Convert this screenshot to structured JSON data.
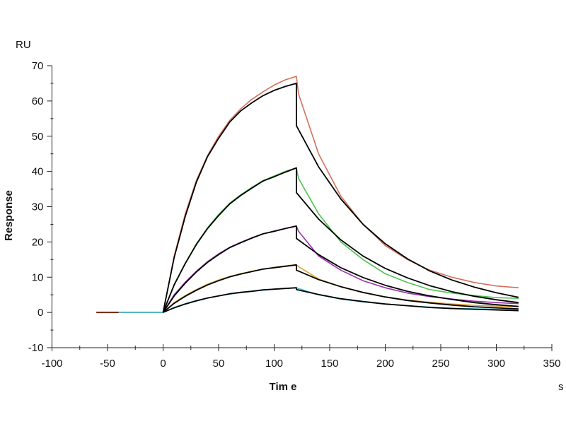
{
  "chart_data": {
    "type": "line",
    "title": "",
    "xlabel": "Tim e",
    "xunit": "s",
    "ylabel": "Response",
    "yunit": "RU",
    "xlim": [
      -100,
      350
    ],
    "ylim": [
      -10,
      70
    ],
    "xticks": [
      -100,
      -50,
      0,
      50,
      100,
      150,
      200,
      250,
      300,
      350
    ],
    "yticks": [
      -10,
      0,
      10,
      20,
      30,
      40,
      50,
      60,
      70
    ],
    "grid": false,
    "legend": "none",
    "assoc_times": [
      0,
      10,
      20,
      30,
      40,
      50,
      60,
      70,
      80,
      90,
      100,
      110,
      120
    ],
    "dissoc_times": [
      120,
      140,
      160,
      180,
      200,
      220,
      240,
      260,
      280,
      300,
      320
    ],
    "baseline_times": [
      -60,
      -40,
      -20,
      0
    ],
    "series": [
      {
        "name": "data-1",
        "color": "#d4705a",
        "kind": "data",
        "assoc": [
          0,
          16,
          28,
          37.5,
          44.5,
          50,
          54.5,
          57.8,
          60.5,
          62.6,
          64.5,
          66,
          67
        ],
        "dissoc": [
          62,
          45,
          33,
          25,
          19,
          15,
          12,
          10,
          8.5,
          7.5,
          7
        ]
      },
      {
        "name": "data-2",
        "color": "#4cc44c",
        "kind": "data",
        "assoc": [
          0,
          8,
          14,
          19.5,
          24,
          27.8,
          31,
          33.4,
          35.5,
          37.4,
          38.7,
          40,
          41
        ],
        "dissoc": [
          38,
          28,
          20,
          15,
          11,
          8.5,
          6.5,
          5.5,
          4.8,
          4.2,
          4
        ]
      },
      {
        "name": "data-3",
        "color": "#9b2fae",
        "kind": "data",
        "assoc": [
          0,
          5,
          8.6,
          11.7,
          14.4,
          16.6,
          18.5,
          19.9,
          21.2,
          22.3,
          23.1,
          23.8,
          24.5
        ],
        "dissoc": [
          23,
          16,
          12,
          9,
          7,
          5.5,
          4.5,
          3.8,
          3.2,
          2.8,
          2.5
        ]
      },
      {
        "name": "data-4",
        "color": "#e0a030",
        "kind": "data",
        "assoc": [
          0,
          2.8,
          4.8,
          6.5,
          8,
          9.2,
          10.2,
          11,
          11.7,
          12.3,
          12.8,
          13.2,
          13.5
        ],
        "dissoc": [
          13,
          9.5,
          7.3,
          5.6,
          4.4,
          3.5,
          2.9,
          2.4,
          2,
          1.8,
          1.6
        ]
      },
      {
        "name": "data-5",
        "color": "#40c0d0",
        "kind": "data",
        "assoc": [
          0,
          1.4,
          2.5,
          3.4,
          4.1,
          4.7,
          5.2,
          5.6,
          6,
          6.3,
          6.6,
          6.8,
          7
        ],
        "dissoc": [
          6.8,
          5,
          3.8,
          3,
          2.4,
          1.9,
          1.5,
          1.2,
          1,
          0.9,
          0.8
        ]
      },
      {
        "name": "fit-1",
        "color": "#000000",
        "kind": "fit",
        "assoc": [
          0,
          15.6,
          27.3,
          37,
          44.2,
          49.4,
          54,
          57.2,
          59.5,
          61.5,
          63,
          64.1,
          65
        ],
        "dissoc": [
          53,
          41.3,
          32.2,
          25,
          19.5,
          15.2,
          11.8,
          9.2,
          7.2,
          5.6,
          4.3
        ]
      },
      {
        "name": "fit-2",
        "color": "#000000",
        "kind": "fit",
        "assoc": [
          0,
          7.8,
          13.9,
          19.3,
          23.8,
          27.5,
          30.8,
          33.2,
          35.3,
          37.3,
          38.5,
          39.8,
          41
        ],
        "dissoc": [
          34,
          26.5,
          20.6,
          16,
          12.5,
          9.8,
          7.6,
          5.9,
          4.6,
          3.6,
          2.8
        ]
      },
      {
        "name": "fit-3",
        "color": "#000000",
        "kind": "fit",
        "assoc": [
          0,
          4.7,
          8.3,
          11.5,
          14.2,
          16.4,
          18.4,
          19.8,
          21.1,
          22.3,
          23,
          23.8,
          24.5
        ],
        "dissoc": [
          21,
          16.4,
          12.7,
          9.9,
          7.7,
          6,
          4.7,
          3.7,
          2.8,
          2.2,
          1.7
        ]
      },
      {
        "name": "fit-4",
        "color": "#000000",
        "kind": "fit",
        "assoc": [
          0,
          2.6,
          4.6,
          6.3,
          7.8,
          9,
          10.1,
          10.9,
          11.6,
          12.3,
          12.7,
          13.1,
          13.5
        ],
        "dissoc": [
          12,
          9.3,
          7.3,
          5.7,
          4.4,
          3.4,
          2.7,
          2.1,
          1.6,
          1.3,
          1
        ]
      },
      {
        "name": "fit-5",
        "color": "#000000",
        "kind": "fit",
        "assoc": [
          0,
          1.3,
          2.4,
          3.3,
          4.1,
          4.7,
          5.3,
          5.7,
          6,
          6.4,
          6.6,
          6.8,
          7
        ],
        "dissoc": [
          6.5,
          5.1,
          3.9,
          3.1,
          2.4,
          1.9,
          1.4,
          1.1,
          0.9,
          0.7,
          0.5
        ]
      }
    ]
  }
}
